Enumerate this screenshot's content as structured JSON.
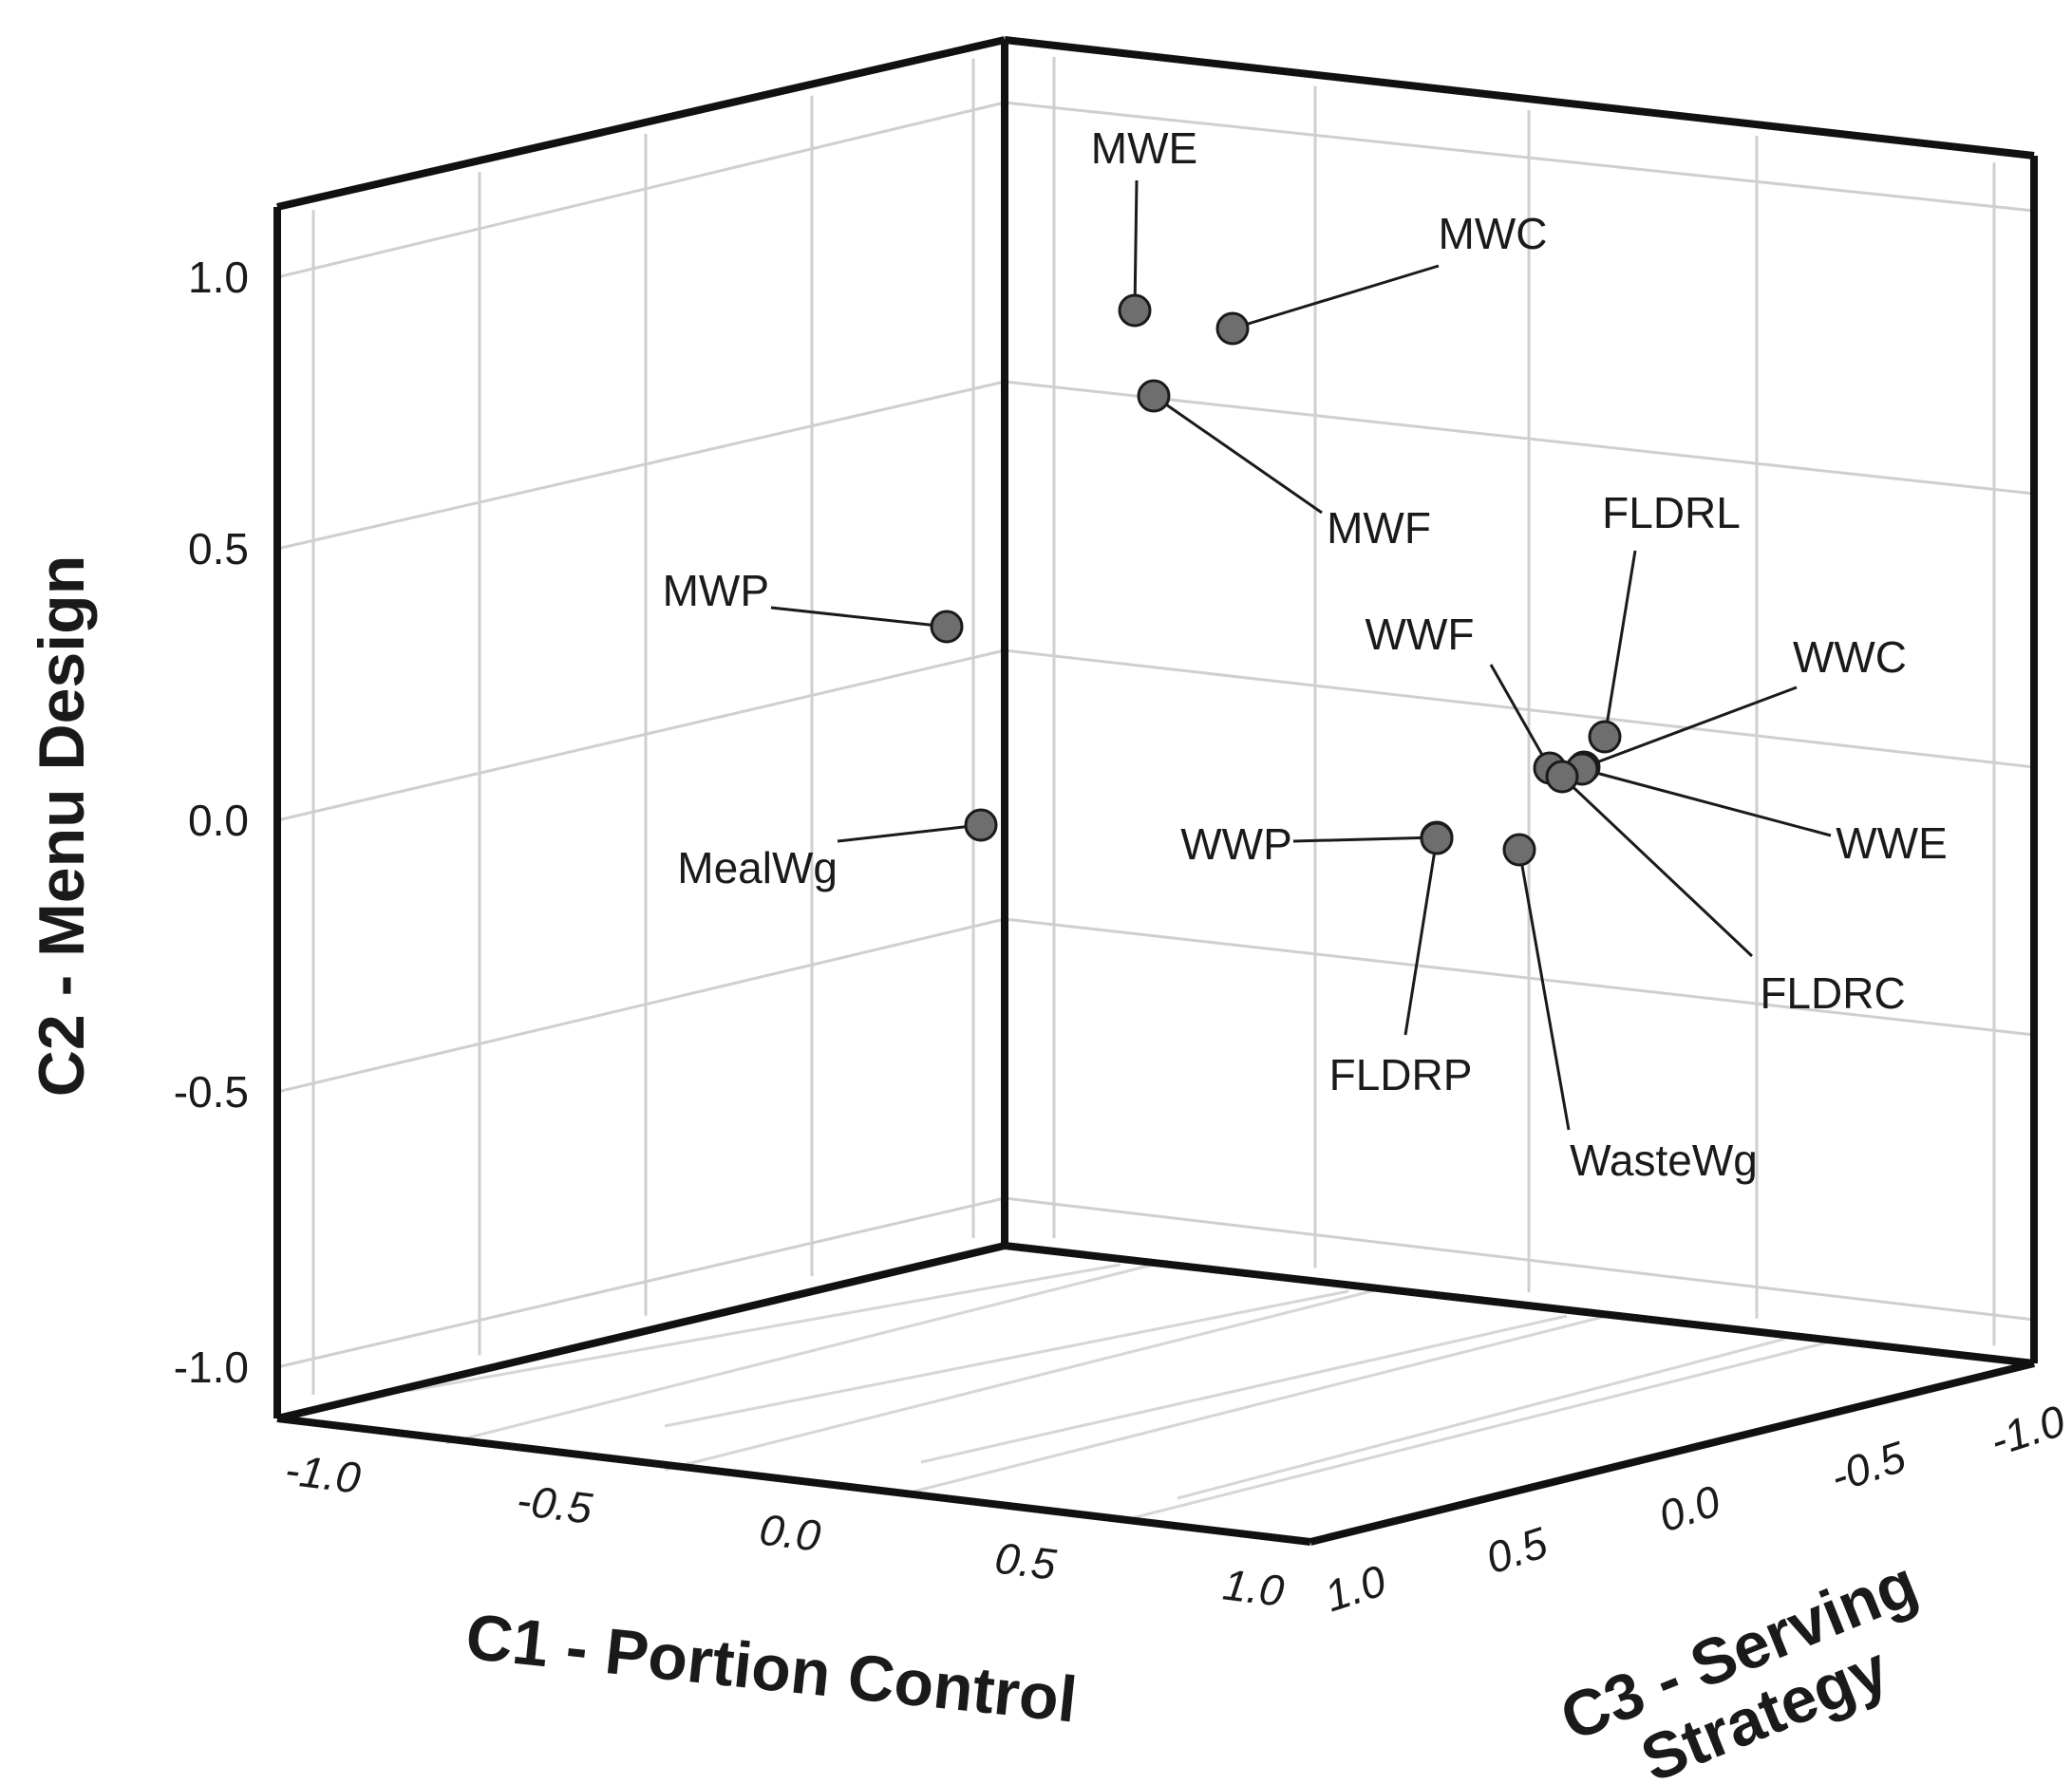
{
  "chart_data": {
    "type": "scatter",
    "dimensions": 3,
    "title": "",
    "xlabel": "C1 - Portion Control",
    "ylabel": "C2 - Menu Design",
    "zlabel": "C3 - Serving Strategy",
    "xlim": [
      -1.0,
      1.0
    ],
    "ylim": [
      -1.0,
      1.0
    ],
    "zlim": [
      -1.0,
      1.0
    ],
    "x_ticks": [
      "-1.0",
      "-0.5",
      "0.0",
      "0.5",
      "1.0"
    ],
    "y_ticks": [
      "1.0",
      "0.5",
      "0.0",
      "-0.5",
      "-1.0"
    ],
    "z_ticks": [
      "1.0",
      "0.5",
      "0.0",
      "-0.5",
      "-1.0"
    ],
    "grid": true,
    "marker_color": "#6e6e6e",
    "points": [
      {
        "label": "MWE",
        "x": 0.25,
        "y": 0.95,
        "z": -0.05
      },
      {
        "label": "MWC",
        "x": 0.35,
        "y": 0.9,
        "z": -0.1
      },
      {
        "label": "MWF",
        "x": 0.3,
        "y": 0.75,
        "z": 0.0
      },
      {
        "label": "MWP",
        "x": -0.05,
        "y": 0.4,
        "z": 0.1
      },
      {
        "label": "MealWg",
        "x": -0.02,
        "y": 0.0,
        "z": 0.05
      },
      {
        "label": "FLDRL",
        "x": 0.7,
        "y": 0.2,
        "z": -0.3
      },
      {
        "label": "WWF",
        "x": 0.65,
        "y": 0.12,
        "z": -0.2
      },
      {
        "label": "WWC",
        "x": 0.72,
        "y": 0.15,
        "z": -0.25
      },
      {
        "label": "WWE",
        "x": 0.7,
        "y": 0.1,
        "z": -0.3
      },
      {
        "label": "FLDRC",
        "x": 0.66,
        "y": 0.1,
        "z": -0.15
      },
      {
        "label": "WWP",
        "x": 0.5,
        "y": 0.0,
        "z": -0.05
      },
      {
        "label": "WasteWg",
        "x": 0.6,
        "y": -0.03,
        "z": -0.15
      },
      {
        "label": "FLDRP",
        "x": 0.5,
        "y": -0.02,
        "z": -0.05
      }
    ]
  }
}
